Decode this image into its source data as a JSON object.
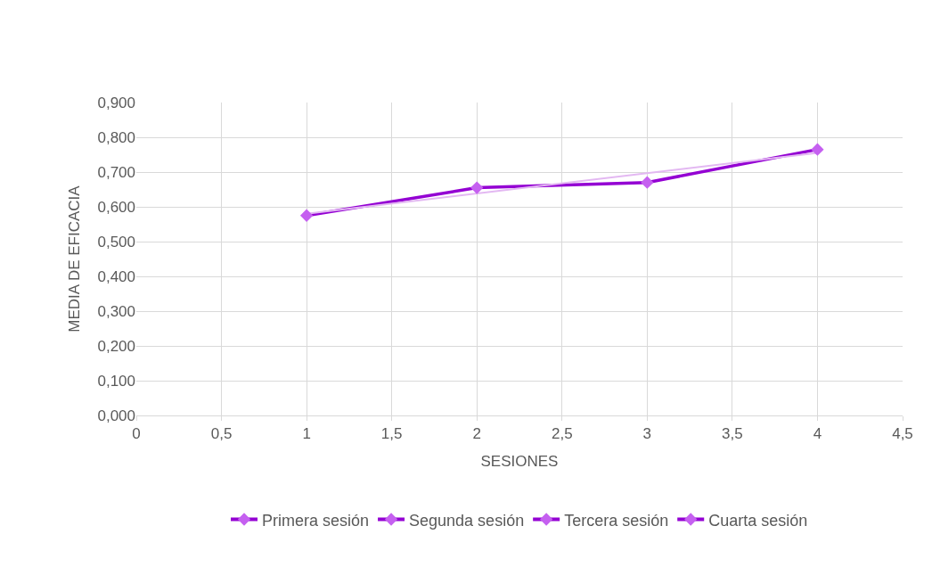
{
  "chart_data": {
    "type": "line",
    "xlabel": "SESIONES",
    "ylabel": "MEDIA DE EFICACIA",
    "series": [
      {
        "type": "line",
        "x": [
          1,
          2,
          3,
          4
        ],
        "values": [
          0.575,
          0.655,
          0.67,
          0.765
        ],
        "color": "#9400d3",
        "marker": "none"
      },
      {
        "type": "line",
        "x": [
          1,
          4
        ],
        "values": [
          0.58,
          0.755
        ],
        "color": "#e3b8f2",
        "marker": "none"
      },
      {
        "name": "Primera sesión",
        "x": [
          1
        ],
        "values": [
          0.575
        ],
        "color": "#c560f0"
      },
      {
        "name": "Segunda sesión",
        "x": [
          2
        ],
        "values": [
          0.655
        ],
        "color": "#c560f0"
      },
      {
        "name": "Tercera sesión",
        "x": [
          3
        ],
        "values": [
          0.67
        ],
        "color": "#c560f0"
      },
      {
        "name": "Cuarta sesión",
        "x": [
          4
        ],
        "values": [
          0.765
        ],
        "color": "#c560f0"
      }
    ],
    "marker": "diamond",
    "grid": true,
    "legend": "bottom",
    "xlim": [
      0,
      4.5
    ],
    "xticks": [
      0,
      {
        "value": 0.5,
        "label": "0,5"
      },
      1,
      {
        "value": 1.5,
        "label": "1,5"
      },
      2,
      {
        "value": 2.5,
        "label": "2,5"
      },
      3,
      {
        "value": 3.5,
        "label": "3,5"
      },
      4,
      {
        "value": 4.5,
        "label": "4,5"
      }
    ],
    "ylim": [
      0,
      0.9
    ],
    "yticks": [
      {
        "value": 0,
        "label": "0,000"
      },
      {
        "value": 0.1,
        "label": "0,100"
      },
      {
        "value": 0.2,
        "label": "0,200"
      },
      {
        "value": 0.3,
        "label": "0,300"
      },
      {
        "value": 0.4,
        "label": "0,400"
      },
      {
        "value": 0.5,
        "label": "0,500"
      },
      {
        "value": 0.6,
        "label": "0,600"
      },
      {
        "value": 0.7,
        "label": "0,700"
      },
      {
        "value": 0.8,
        "label": "0,800"
      },
      {
        "value": 0.9,
        "label": "0,900"
      }
    ]
  }
}
